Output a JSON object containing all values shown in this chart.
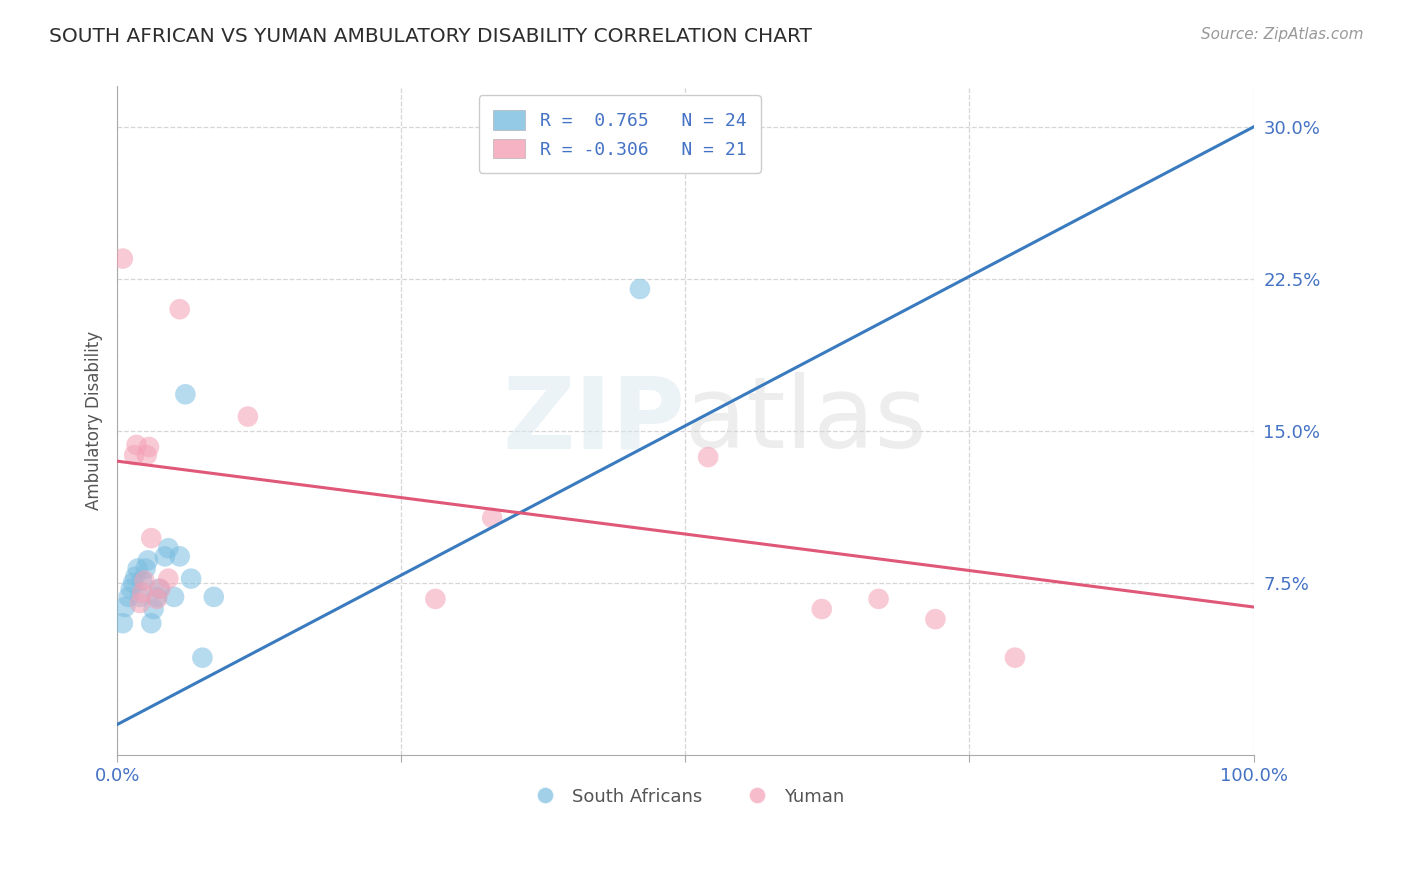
{
  "title": "SOUTH AFRICAN VS YUMAN AMBULATORY DISABILITY CORRELATION CHART",
  "source": "Source: ZipAtlas.com",
  "ylabel": "Ambulatory Disability",
  "xlim": [
    0.0,
    1.0
  ],
  "ylim": [
    -0.01,
    0.32
  ],
  "xticks": [
    0.0,
    0.25,
    0.5,
    0.75,
    1.0
  ],
  "xticklabels": [
    "0.0%",
    "",
    "",
    "",
    "100.0%"
  ],
  "yticks": [
    0.075,
    0.15,
    0.225,
    0.3
  ],
  "yticklabels": [
    "7.5%",
    "15.0%",
    "22.5%",
    "30.0%"
  ],
  "R_blue": 0.765,
  "N_blue": 24,
  "R_pink": -0.306,
  "N_pink": 21,
  "blue_scatter": [
    [
      0.005,
      0.055
    ],
    [
      0.007,
      0.063
    ],
    [
      0.01,
      0.068
    ],
    [
      0.012,
      0.072
    ],
    [
      0.014,
      0.075
    ],
    [
      0.016,
      0.078
    ],
    [
      0.018,
      0.082
    ],
    [
      0.02,
      0.068
    ],
    [
      0.022,
      0.076
    ],
    [
      0.025,
      0.082
    ],
    [
      0.027,
      0.086
    ],
    [
      0.03,
      0.055
    ],
    [
      0.032,
      0.062
    ],
    [
      0.035,
      0.068
    ],
    [
      0.037,
      0.072
    ],
    [
      0.042,
      0.088
    ],
    [
      0.045,
      0.092
    ],
    [
      0.05,
      0.068
    ],
    [
      0.055,
      0.088
    ],
    [
      0.06,
      0.168
    ],
    [
      0.065,
      0.077
    ],
    [
      0.075,
      0.038
    ],
    [
      0.085,
      0.068
    ],
    [
      0.46,
      0.22
    ]
  ],
  "pink_scatter": [
    [
      0.005,
      0.235
    ],
    [
      0.015,
      0.138
    ],
    [
      0.017,
      0.143
    ],
    [
      0.02,
      0.065
    ],
    [
      0.022,
      0.07
    ],
    [
      0.024,
      0.076
    ],
    [
      0.026,
      0.138
    ],
    [
      0.028,
      0.142
    ],
    [
      0.03,
      0.097
    ],
    [
      0.035,
      0.067
    ],
    [
      0.038,
      0.072
    ],
    [
      0.045,
      0.077
    ],
    [
      0.055,
      0.21
    ],
    [
      0.115,
      0.157
    ],
    [
      0.28,
      0.067
    ],
    [
      0.33,
      0.107
    ],
    [
      0.52,
      0.137
    ],
    [
      0.62,
      0.062
    ],
    [
      0.67,
      0.067
    ],
    [
      0.72,
      0.057
    ],
    [
      0.79,
      0.038
    ]
  ],
  "blue_line_x": [
    0.0,
    1.0
  ],
  "blue_line_y_intercept": 0.005,
  "blue_line_slope": 0.295,
  "pink_line_x": [
    0.0,
    1.0
  ],
  "pink_line_y_intercept": 0.135,
  "pink_line_slope": -0.072,
  "blue_color": "#7bbde0",
  "pink_color": "#f4a0b5",
  "blue_line_color": "#3a7abf",
  "pink_line_color": "#e05878",
  "title_color": "#2d2d2d",
  "axis_label_color": "#555555",
  "tick_color": "#4472c4",
  "grid_color": "#cccccc",
  "background_color": "#ffffff",
  "watermark_zip": "ZIP",
  "watermark_atlas": "atlas",
  "legend_text_color": "#4472c4"
}
